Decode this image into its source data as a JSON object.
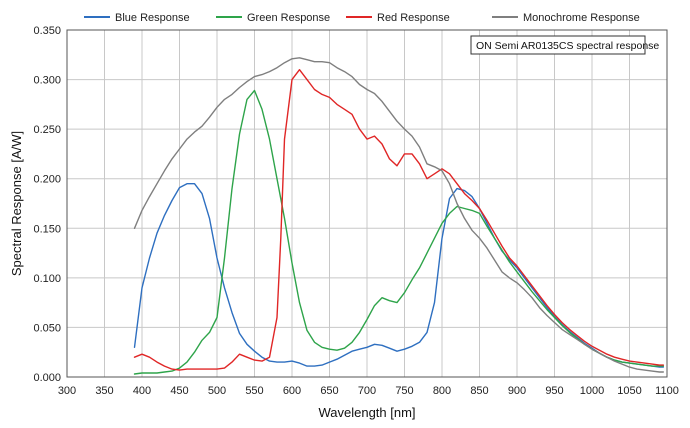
{
  "chart_data": {
    "type": "line",
    "title": "",
    "xlabel": "Wavelength [nm]",
    "ylabel": "Spectral Response [A/W]",
    "xlim": [
      300,
      1100
    ],
    "ylim": [
      0,
      0.35
    ],
    "x_ticks": [
      300,
      350,
      400,
      450,
      500,
      550,
      600,
      650,
      700,
      750,
      800,
      850,
      900,
      950,
      1000,
      1050,
      1100
    ],
    "y_ticks": [
      0,
      0.05,
      0.1,
      0.15,
      0.2,
      0.25,
      0.3,
      0.35
    ],
    "x_tick_labels": [
      "300",
      "350",
      "400",
      "450",
      "500",
      "550",
      "600",
      "650",
      "700",
      "750",
      "800",
      "850",
      "900",
      "950",
      "1000",
      "1050",
      "1100"
    ],
    "y_tick_labels": [
      "0.000",
      "0.050",
      "0.100",
      "0.150",
      "0.200",
      "0.250",
      "0.300",
      "0.350"
    ],
    "grid": true,
    "legend_position": "top",
    "annotation": "ON Semi AR0135CS spectral response",
    "series": [
      {
        "name": "Blue Response",
        "color": "#2e6fc0",
        "x": [
          390,
          400,
          410,
          420,
          430,
          440,
          450,
          460,
          470,
          480,
          490,
          500,
          510,
          520,
          530,
          540,
          550,
          560,
          570,
          580,
          590,
          600,
          610,
          620,
          630,
          640,
          650,
          660,
          670,
          680,
          690,
          700,
          710,
          720,
          730,
          740,
          750,
          760,
          770,
          780,
          790,
          800,
          810,
          820,
          830,
          840,
          850,
          860,
          870,
          880,
          890,
          900,
          910,
          920,
          930,
          940,
          950,
          960,
          970,
          980,
          990,
          1000,
          1010,
          1020,
          1030,
          1040,
          1050,
          1060,
          1070,
          1080,
          1090,
          1095
        ],
        "values": [
          0.03,
          0.09,
          0.12,
          0.145,
          0.163,
          0.178,
          0.191,
          0.195,
          0.195,
          0.185,
          0.16,
          0.12,
          0.09,
          0.065,
          0.044,
          0.033,
          0.026,
          0.02,
          0.016,
          0.015,
          0.015,
          0.016,
          0.014,
          0.011,
          0.011,
          0.012,
          0.015,
          0.018,
          0.022,
          0.026,
          0.028,
          0.03,
          0.033,
          0.032,
          0.029,
          0.026,
          0.028,
          0.031,
          0.035,
          0.045,
          0.075,
          0.14,
          0.18,
          0.19,
          0.188,
          0.182,
          0.17,
          0.155,
          0.14,
          0.127,
          0.118,
          0.11,
          0.1,
          0.09,
          0.08,
          0.07,
          0.061,
          0.053,
          0.046,
          0.04,
          0.034,
          0.029,
          0.024,
          0.02,
          0.017,
          0.015,
          0.014,
          0.013,
          0.012,
          0.011,
          0.01,
          0.01
        ]
      },
      {
        "name": "Green Response",
        "color": "#2ea44a",
        "x": [
          390,
          400,
          410,
          420,
          430,
          440,
          450,
          460,
          470,
          480,
          490,
          500,
          510,
          520,
          530,
          540,
          550,
          560,
          570,
          580,
          590,
          600,
          610,
          620,
          630,
          640,
          650,
          660,
          670,
          680,
          690,
          700,
          710,
          720,
          730,
          740,
          750,
          760,
          770,
          780,
          790,
          800,
          810,
          820,
          830,
          840,
          850,
          860,
          870,
          880,
          890,
          900,
          910,
          920,
          930,
          940,
          950,
          960,
          970,
          980,
          990,
          1000,
          1010,
          1020,
          1030,
          1040,
          1050,
          1060,
          1070,
          1080,
          1090,
          1095
        ],
        "values": [
          0.003,
          0.004,
          0.004,
          0.004,
          0.005,
          0.006,
          0.009,
          0.015,
          0.025,
          0.037,
          0.045,
          0.06,
          0.12,
          0.19,
          0.245,
          0.28,
          0.289,
          0.27,
          0.24,
          0.2,
          0.16,
          0.115,
          0.075,
          0.047,
          0.035,
          0.03,
          0.028,
          0.027,
          0.029,
          0.035,
          0.045,
          0.058,
          0.072,
          0.08,
          0.077,
          0.075,
          0.085,
          0.098,
          0.11,
          0.125,
          0.14,
          0.155,
          0.165,
          0.172,
          0.17,
          0.168,
          0.165,
          0.152,
          0.14,
          0.128,
          0.116,
          0.106,
          0.096,
          0.086,
          0.077,
          0.068,
          0.06,
          0.052,
          0.045,
          0.039,
          0.033,
          0.028,
          0.024,
          0.02,
          0.017,
          0.015,
          0.014,
          0.013,
          0.012,
          0.011,
          0.011,
          0.011
        ]
      },
      {
        "name": "Red Response",
        "color": "#e02626",
        "x": [
          390,
          400,
          410,
          420,
          430,
          440,
          450,
          460,
          470,
          480,
          490,
          500,
          510,
          520,
          530,
          540,
          550,
          560,
          570,
          580,
          585,
          590,
          600,
          610,
          620,
          630,
          640,
          650,
          660,
          670,
          680,
          690,
          700,
          710,
          720,
          730,
          740,
          750,
          760,
          770,
          780,
          790,
          800,
          810,
          820,
          830,
          840,
          850,
          860,
          870,
          880,
          890,
          900,
          910,
          920,
          930,
          940,
          950,
          960,
          970,
          980,
          990,
          1000,
          1010,
          1020,
          1030,
          1040,
          1050,
          1060,
          1070,
          1080,
          1090,
          1095
        ],
        "values": [
          0.02,
          0.023,
          0.02,
          0.015,
          0.011,
          0.008,
          0.007,
          0.008,
          0.008,
          0.008,
          0.008,
          0.008,
          0.009,
          0.015,
          0.023,
          0.02,
          0.017,
          0.016,
          0.02,
          0.06,
          0.14,
          0.24,
          0.3,
          0.31,
          0.3,
          0.29,
          0.285,
          0.282,
          0.275,
          0.27,
          0.265,
          0.25,
          0.24,
          0.243,
          0.235,
          0.22,
          0.213,
          0.225,
          0.225,
          0.215,
          0.2,
          0.205,
          0.21,
          0.205,
          0.195,
          0.185,
          0.178,
          0.17,
          0.158,
          0.145,
          0.132,
          0.12,
          0.112,
          0.102,
          0.092,
          0.082,
          0.072,
          0.063,
          0.055,
          0.048,
          0.042,
          0.036,
          0.031,
          0.027,
          0.023,
          0.02,
          0.018,
          0.016,
          0.015,
          0.014,
          0.013,
          0.012,
          0.012
        ]
      },
      {
        "name": "Monochrome Response",
        "color": "#7f7f7f",
        "x": [
          390,
          400,
          410,
          420,
          430,
          440,
          450,
          460,
          470,
          480,
          490,
          500,
          510,
          520,
          530,
          540,
          550,
          560,
          570,
          580,
          590,
          600,
          610,
          620,
          630,
          640,
          650,
          660,
          670,
          680,
          690,
          700,
          710,
          720,
          730,
          740,
          750,
          760,
          770,
          780,
          790,
          800,
          810,
          820,
          830,
          840,
          850,
          860,
          870,
          880,
          890,
          900,
          910,
          920,
          930,
          940,
          950,
          960,
          970,
          980,
          990,
          1000,
          1010,
          1020,
          1030,
          1040,
          1050,
          1060,
          1070,
          1080,
          1090,
          1095
        ],
        "values": [
          0.15,
          0.168,
          0.182,
          0.195,
          0.208,
          0.22,
          0.23,
          0.24,
          0.247,
          0.253,
          0.262,
          0.272,
          0.28,
          0.285,
          0.292,
          0.298,
          0.303,
          0.305,
          0.308,
          0.312,
          0.317,
          0.321,
          0.322,
          0.32,
          0.318,
          0.318,
          0.317,
          0.312,
          0.308,
          0.303,
          0.295,
          0.29,
          0.286,
          0.278,
          0.268,
          0.258,
          0.25,
          0.243,
          0.232,
          0.215,
          0.212,
          0.208,
          0.195,
          0.175,
          0.16,
          0.148,
          0.14,
          0.13,
          0.118,
          0.106,
          0.1,
          0.095,
          0.088,
          0.08,
          0.07,
          0.062,
          0.055,
          0.048,
          0.043,
          0.038,
          0.033,
          0.028,
          0.024,
          0.02,
          0.016,
          0.013,
          0.01,
          0.008,
          0.007,
          0.006,
          0.005,
          0.005
        ]
      }
    ]
  }
}
